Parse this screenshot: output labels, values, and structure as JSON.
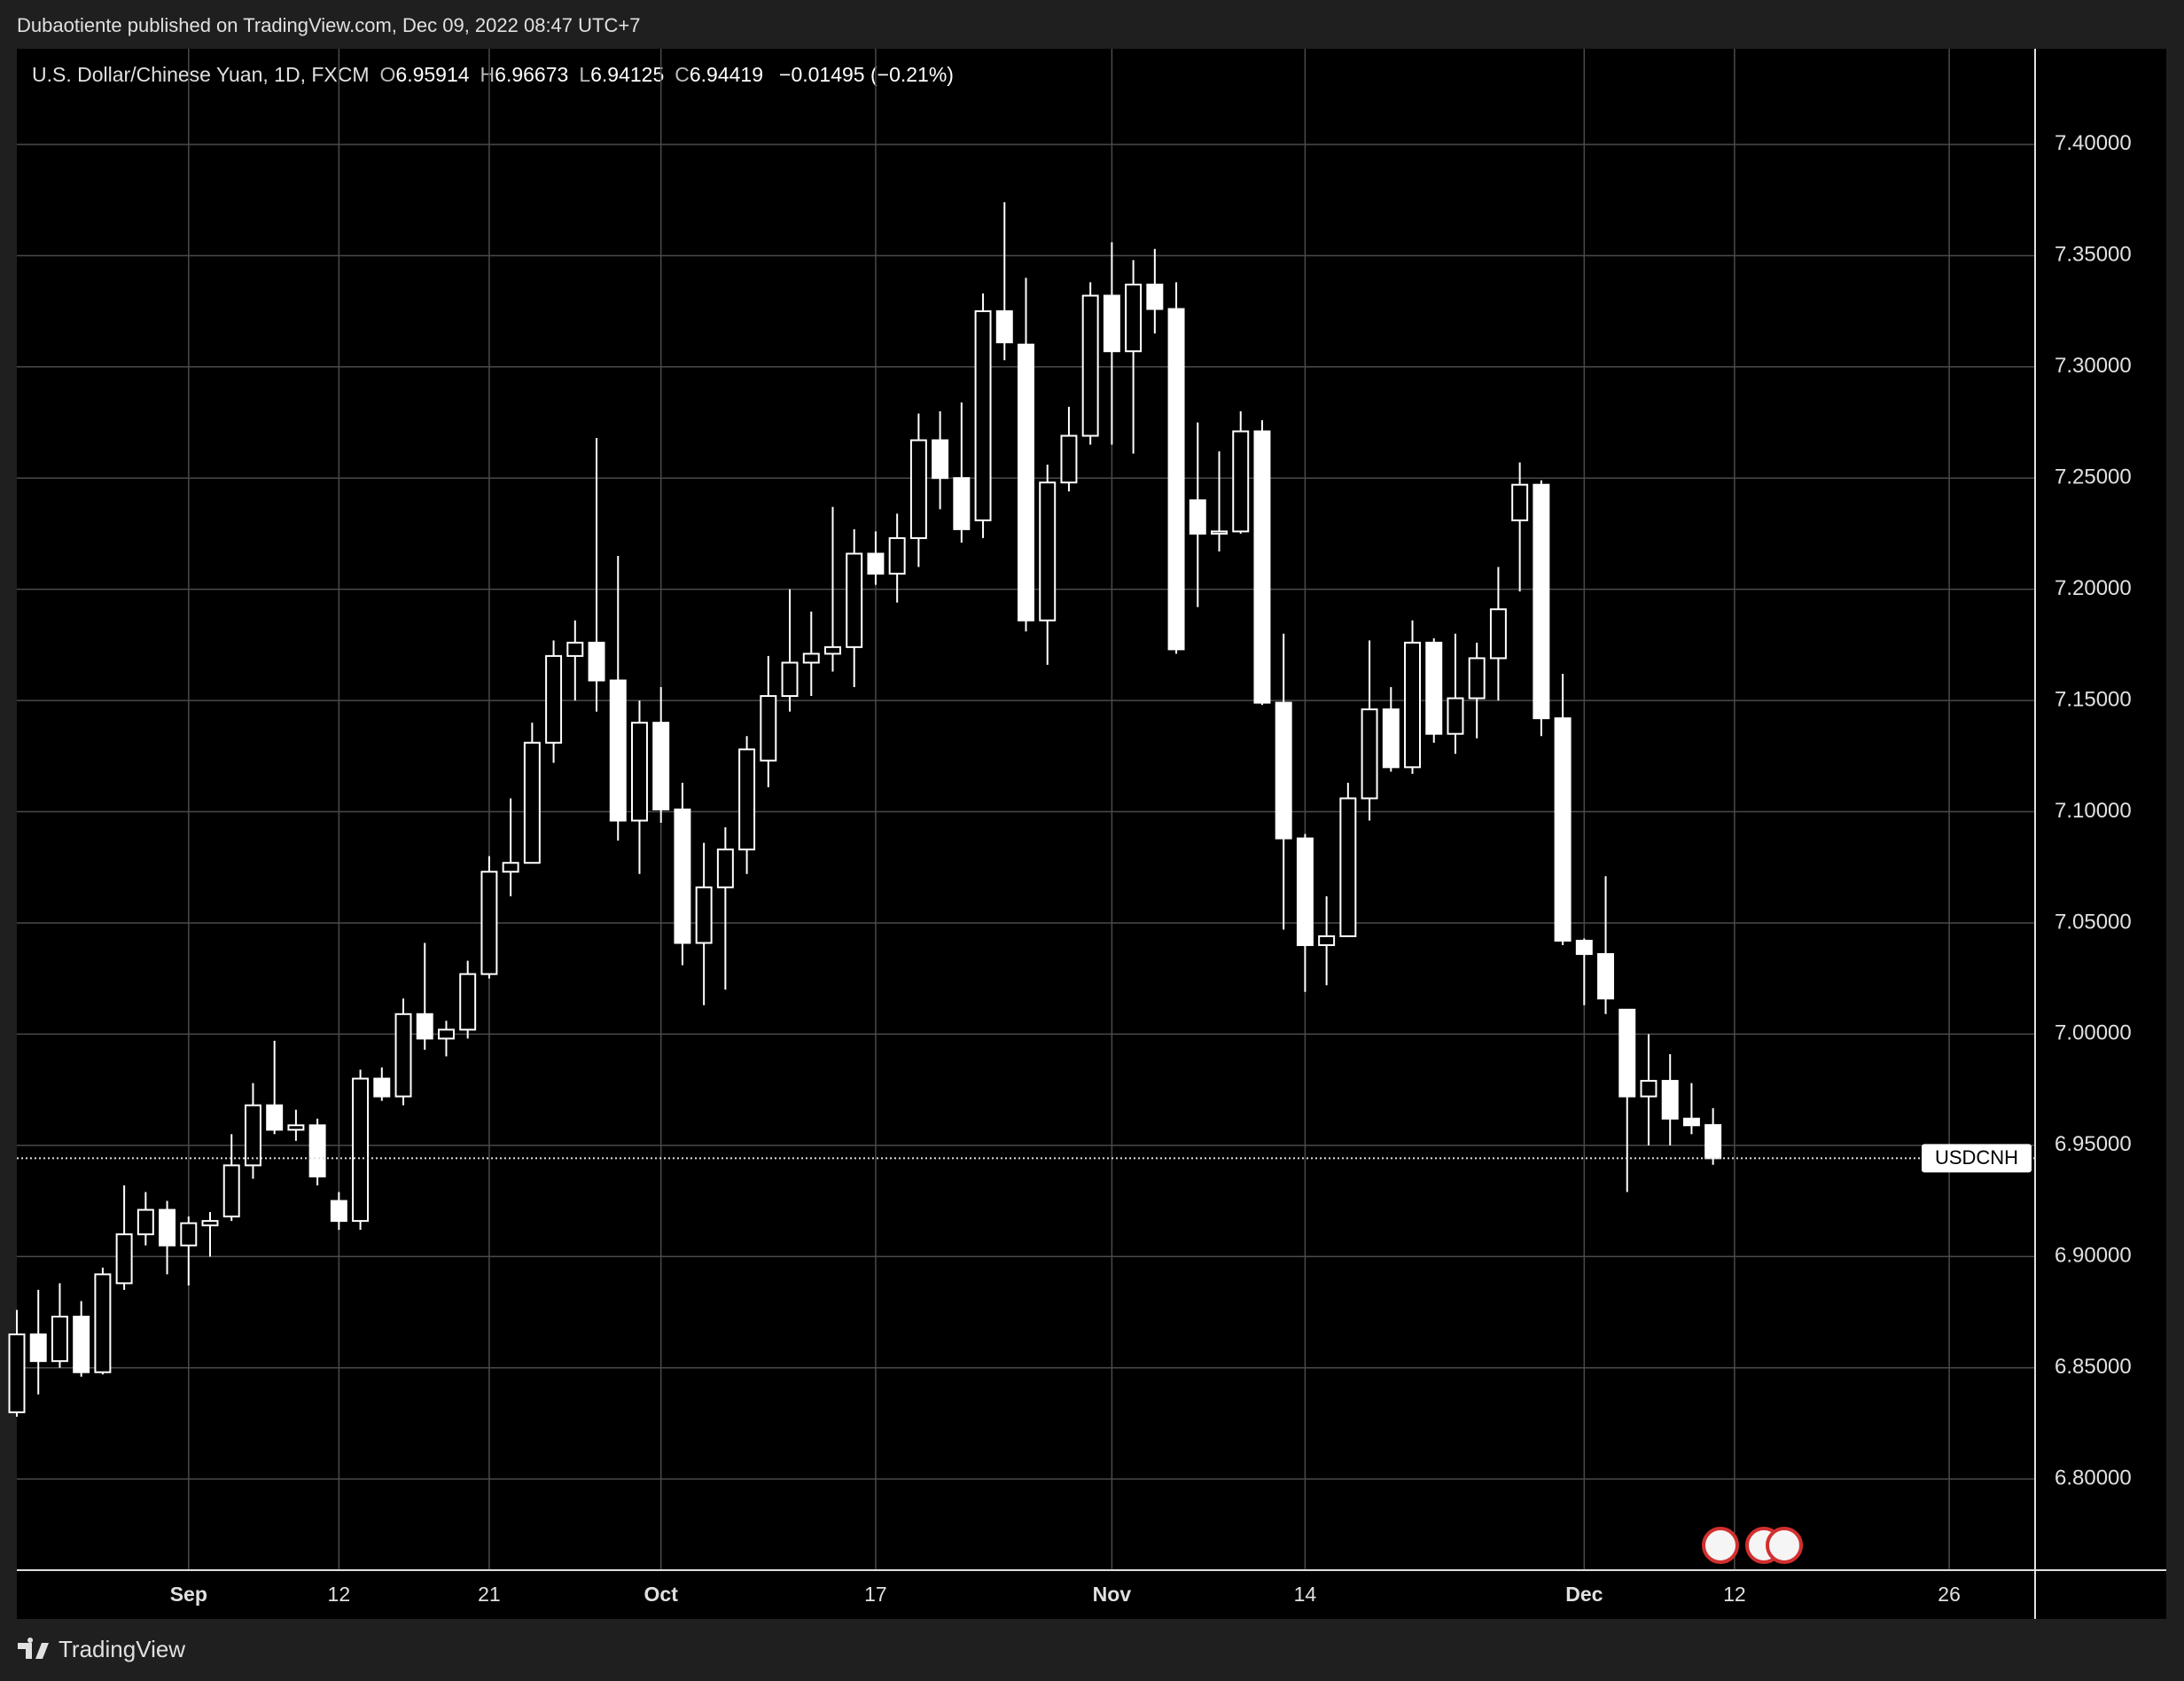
{
  "header": {
    "published": "Dubaotiente published on TradingView.com, Dec 09, 2022 08:47 UTC+7"
  },
  "footer": {
    "brand": "TradingView"
  },
  "legend": {
    "o": "O",
    "h": "H",
    "l": "L",
    "c": "C",
    "change": "−0.01495 (−0.21%)"
  },
  "chart_data": {
    "type": "candlestick",
    "title": "U.S. Dollar/Chinese Yuan, 1D, FXCM",
    "symbol": "USDCNH",
    "color": "#ffffff",
    "grid": true,
    "x": [
      "2022-08-22",
      "2022-08-23",
      "2022-08-24",
      "2022-08-25",
      "2022-08-26",
      "2022-08-29",
      "2022-08-30",
      "2022-08-31",
      "2022-09-01",
      "2022-09-02",
      "2022-09-05",
      "2022-09-06",
      "2022-09-07",
      "2022-09-08",
      "2022-09-09",
      "2022-09-12",
      "2022-09-13",
      "2022-09-14",
      "2022-09-15",
      "2022-09-16",
      "2022-09-19",
      "2022-09-20",
      "2022-09-21",
      "2022-09-22",
      "2022-09-23",
      "2022-09-26",
      "2022-09-27",
      "2022-09-28",
      "2022-09-29",
      "2022-09-30",
      "2022-10-03",
      "2022-10-04",
      "2022-10-05",
      "2022-10-06",
      "2022-10-07",
      "2022-10-10",
      "2022-10-11",
      "2022-10-12",
      "2022-10-13",
      "2022-10-14",
      "2022-10-17",
      "2022-10-18",
      "2022-10-19",
      "2022-10-20",
      "2022-10-21",
      "2022-10-24",
      "2022-10-25",
      "2022-10-26",
      "2022-10-27",
      "2022-10-28",
      "2022-10-31",
      "2022-11-01",
      "2022-11-02",
      "2022-11-03",
      "2022-11-04",
      "2022-11-07",
      "2022-11-08",
      "2022-11-09",
      "2022-11-10",
      "2022-11-11",
      "2022-11-14",
      "2022-11-15",
      "2022-11-16",
      "2022-11-17",
      "2022-11-18",
      "2022-11-21",
      "2022-11-22",
      "2022-11-23",
      "2022-11-24",
      "2022-11-25",
      "2022-11-28",
      "2022-11-29",
      "2022-11-30",
      "2022-12-01",
      "2022-12-02",
      "2022-12-05",
      "2022-12-06",
      "2022-12-07",
      "2022-12-08",
      "2022-12-09"
    ],
    "open": [
      6.83,
      6.865,
      6.853,
      6.873,
      6.848,
      6.888,
      6.91,
      6.921,
      6.905,
      6.914,
      6.918,
      6.941,
      6.968,
      6.957,
      6.959,
      6.925,
      6.916,
      6.98,
      6.972,
      7.009,
      6.998,
      7.002,
      7.027,
      7.073,
      7.077,
      7.131,
      7.17,
      7.176,
      7.159,
      7.096,
      7.14,
      7.101,
      7.041,
      7.066,
      7.083,
      7.123,
      7.152,
      7.167,
      7.171,
      7.174,
      7.216,
      7.207,
      7.223,
      7.267,
      7.25,
      7.231,
      7.325,
      7.31,
      7.186,
      7.248,
      7.269,
      7.332,
      7.307,
      7.337,
      7.326,
      7.24,
      7.225,
      7.226,
      7.271,
      7.149,
      7.088,
      7.04,
      7.044,
      7.106,
      7.146,
      7.12,
      7.176,
      7.135,
      7.151,
      7.169,
      7.231,
      7.247,
      7.142,
      7.042,
      7.036,
      7.011,
      6.972,
      6.979,
      6.962,
      6.95914
    ],
    "high": [
      6.876,
      6.885,
      6.888,
      6.88,
      6.895,
      6.932,
      6.929,
      6.925,
      6.918,
      6.92,
      6.955,
      6.978,
      6.997,
      6.966,
      6.962,
      6.929,
      6.984,
      6.985,
      7.016,
      7.041,
      7.006,
      7.033,
      7.08,
      7.106,
      7.14,
      7.177,
      7.186,
      7.268,
      7.215,
      7.15,
      7.156,
      7.113,
      7.086,
      7.093,
      7.134,
      7.17,
      7.2,
      7.19,
      7.237,
      7.227,
      7.226,
      7.234,
      7.279,
      7.28,
      7.284,
      7.333,
      7.374,
      7.34,
      7.256,
      7.282,
      7.338,
      7.356,
      7.348,
      7.353,
      7.338,
      7.275,
      7.262,
      7.28,
      7.276,
      7.18,
      7.09,
      7.062,
      7.113,
      7.177,
      7.156,
      7.186,
      7.178,
      7.18,
      7.176,
      7.21,
      7.257,
      7.249,
      7.162,
      7.043,
      7.071,
      7.011,
      7.0,
      6.991,
      6.978,
      6.96673
    ],
    "low": [
      6.828,
      6.838,
      6.85,
      6.846,
      6.847,
      6.885,
      6.905,
      6.892,
      6.887,
      6.9,
      6.916,
      6.935,
      6.955,
      6.952,
      6.932,
      6.912,
      6.912,
      6.97,
      6.968,
      6.993,
      6.99,
      6.998,
      7.025,
      7.062,
      7.077,
      7.122,
      7.15,
      7.145,
      7.087,
      7.072,
      7.095,
      7.031,
      7.013,
      7.02,
      7.072,
      7.111,
      7.145,
      7.152,
      7.163,
      7.156,
      7.202,
      7.194,
      7.21,
      7.236,
      7.221,
      7.223,
      7.303,
      7.181,
      7.166,
      7.244,
      7.265,
      7.265,
      7.261,
      7.315,
      7.171,
      7.192,
      7.217,
      7.225,
      7.148,
      7.047,
      7.019,
      7.022,
      7.044,
      7.096,
      7.118,
      7.117,
      7.131,
      7.126,
      7.133,
      7.15,
      7.199,
      7.134,
      7.04,
      7.013,
      7.009,
      6.929,
      6.95,
      6.95,
      6.955,
      6.94125
    ],
    "close": [
      6.865,
      6.853,
      6.873,
      6.848,
      6.892,
      6.91,
      6.921,
      6.905,
      6.915,
      6.916,
      6.941,
      6.968,
      6.957,
      6.959,
      6.936,
      6.916,
      6.98,
      6.972,
      7.009,
      6.998,
      7.002,
      7.027,
      7.073,
      7.077,
      7.131,
      7.17,
      7.176,
      7.159,
      7.096,
      7.14,
      7.101,
      7.041,
      7.066,
      7.083,
      7.128,
      7.152,
      7.167,
      7.171,
      7.174,
      7.216,
      7.207,
      7.223,
      7.267,
      7.25,
      7.227,
      7.325,
      7.311,
      7.186,
      7.248,
      7.269,
      7.332,
      7.307,
      7.337,
      7.326,
      7.173,
      7.225,
      7.226,
      7.271,
      7.149,
      7.088,
      7.04,
      7.044,
      7.106,
      7.146,
      7.12,
      7.176,
      7.135,
      7.151,
      7.169,
      7.191,
      7.247,
      7.142,
      7.042,
      7.036,
      7.016,
      6.972,
      6.979,
      6.962,
      6.959,
      6.94419
    ],
    "xlim": [
      "2022-08-22",
      "2022-12-30"
    ],
    "xticks": [
      {
        "value": "2022-09-01",
        "label": "Sep"
      },
      {
        "value": "2022-09-12",
        "label": "12"
      },
      {
        "value": "2022-09-21",
        "label": "21"
      },
      {
        "value": "2022-10-03",
        "label": "Oct"
      },
      {
        "value": "2022-10-17",
        "label": "17"
      },
      {
        "value": "2022-11-01",
        "label": "Nov"
      },
      {
        "value": "2022-11-14",
        "label": "14"
      },
      {
        "value": "2022-12-01",
        "label": "Dec"
      },
      {
        "value": "2022-12-12",
        "label": "12"
      },
      {
        "value": "2022-12-26",
        "label": "26"
      }
    ],
    "ylim": [
      6.759,
      7.443
    ],
    "yticks": [
      {
        "value": 6.8,
        "label": "6.80000"
      },
      {
        "value": 6.85,
        "label": "6.85000"
      },
      {
        "value": 6.9,
        "label": "6.90000"
      },
      {
        "value": 6.95,
        "label": "6.95000"
      },
      {
        "value": 7.0,
        "label": "7.00000"
      },
      {
        "value": 7.05,
        "label": "7.05000"
      },
      {
        "value": 7.1,
        "label": "7.10000"
      },
      {
        "value": 7.15,
        "label": "7.15000"
      },
      {
        "value": 7.2,
        "label": "7.20000"
      },
      {
        "value": 7.25,
        "label": "7.25000"
      },
      {
        "value": 7.3,
        "label": "7.30000"
      },
      {
        "value": 7.35,
        "label": "7.35000"
      },
      {
        "value": 7.4,
        "label": "7.40000"
      }
    ]
  }
}
